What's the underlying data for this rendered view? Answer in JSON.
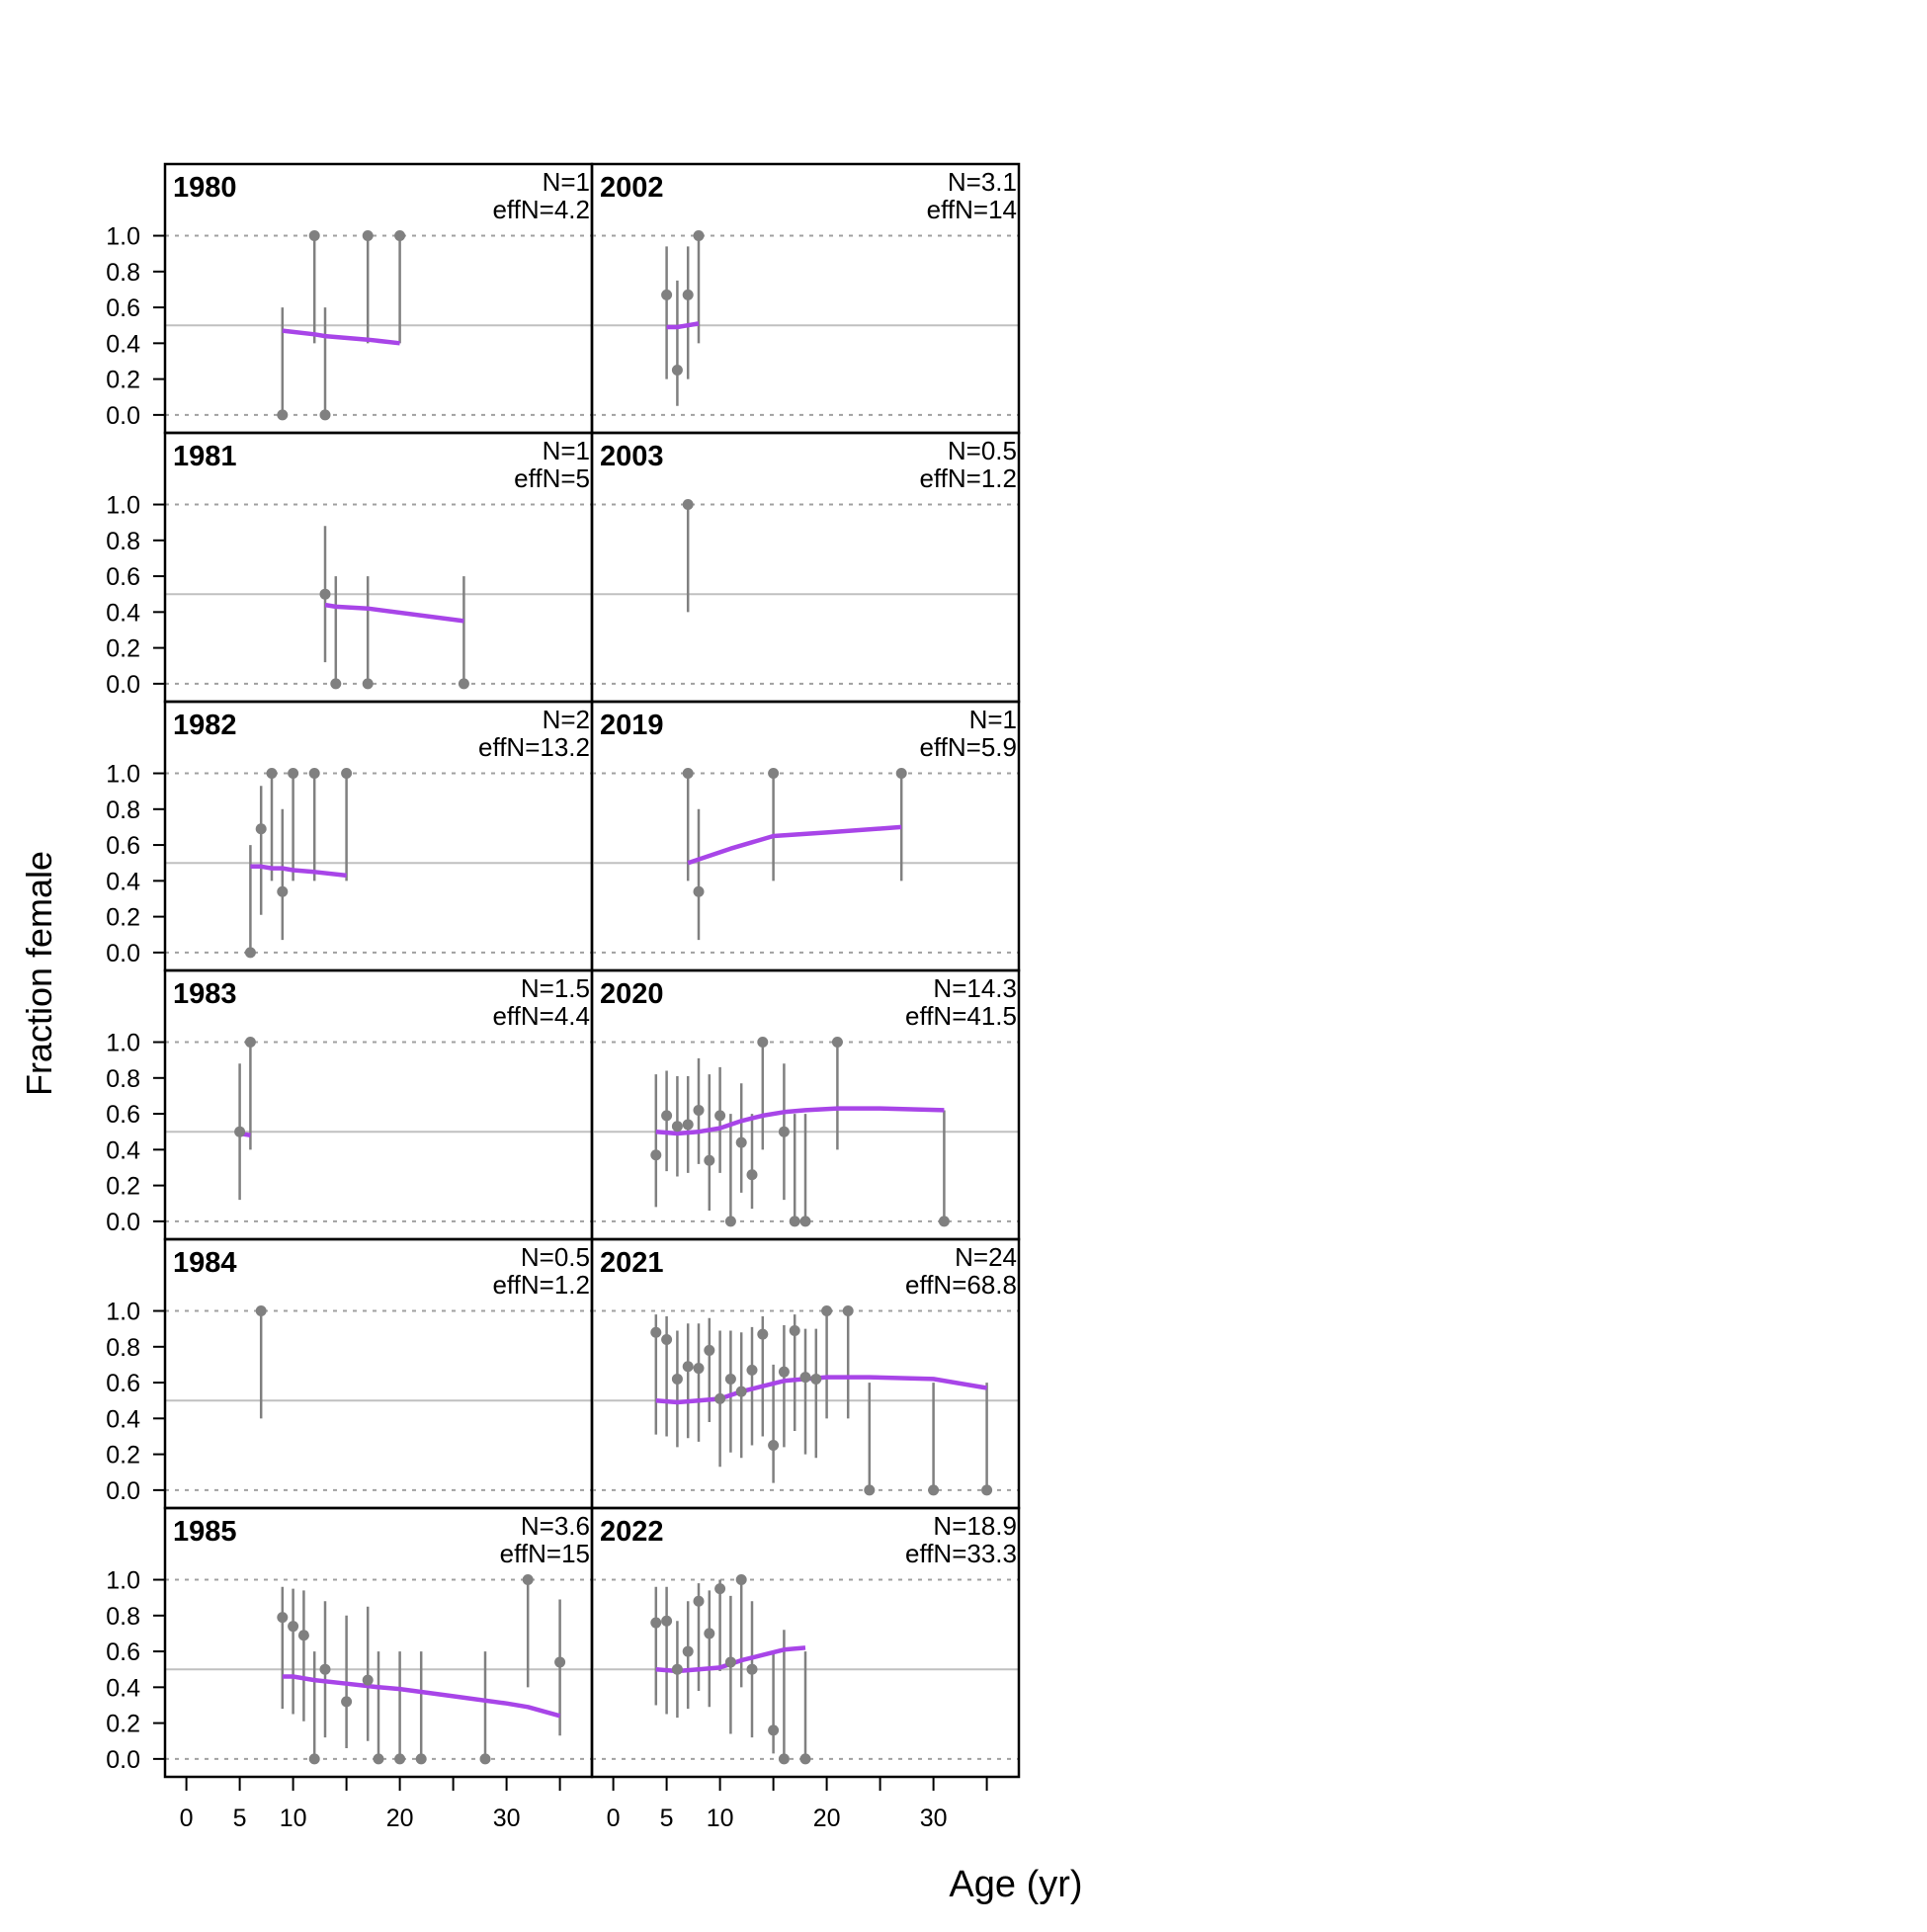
{
  "chart_data": {
    "type": "scatter",
    "ylabel": "Fraction female",
    "xlabel": "Age (yr)",
    "xlim": [
      -2,
      38
    ],
    "ylim": [
      -0.1,
      1.4
    ],
    "x_ticks": [
      0,
      5,
      10,
      15,
      20,
      25,
      30,
      35
    ],
    "x_tick_labels": [
      "0",
      "5",
      "10",
      "20",
      "30"
    ],
    "x_tick_label_values": [
      0,
      5,
      10,
      20,
      30
    ],
    "y_ticks": [
      0.0,
      0.2,
      0.4,
      0.6,
      0.8,
      1.0
    ],
    "y_tick_labels": [
      "0.0",
      "0.2",
      "0.4",
      "0.6",
      "0.8",
      "1.0"
    ],
    "reference_line": 0.5,
    "colors": {
      "observed": "#808080",
      "expected": "#a845e8",
      "reference": "#c0c0c0",
      "grid": "#a0a0a0"
    },
    "panels": [
      {
        "year": "1980",
        "n_label": "N=1",
        "effn_label": "effN=4.2",
        "column": 0,
        "row": 0,
        "observed": [
          [
            9,
            0.0
          ],
          [
            12,
            1.0
          ],
          [
            13,
            0.0
          ],
          [
            17,
            1.0
          ],
          [
            20,
            1.0
          ]
        ],
        "intervals": [
          [
            9,
            0.0,
            0.6
          ],
          [
            12,
            0.4,
            1.0
          ],
          [
            13,
            0.0,
            0.6
          ],
          [
            17,
            0.4,
            1.0
          ],
          [
            20,
            0.4,
            1.0
          ]
        ],
        "expected": [
          [
            9,
            0.47
          ],
          [
            12,
            0.45
          ],
          [
            13,
            0.44
          ],
          [
            17,
            0.42
          ],
          [
            20,
            0.4
          ]
        ]
      },
      {
        "year": "1981",
        "n_label": "N=1",
        "effn_label": "effN=5",
        "column": 0,
        "row": 1,
        "observed": [
          [
            13,
            0.5
          ],
          [
            14,
            0.0
          ],
          [
            17,
            0.0
          ],
          [
            26,
            0.0
          ]
        ],
        "intervals": [
          [
            13,
            0.12,
            0.88
          ],
          [
            14,
            0.0,
            0.6
          ],
          [
            17,
            0.0,
            0.6
          ],
          [
            26,
            0.0,
            0.6
          ]
        ],
        "expected": [
          [
            13,
            0.44
          ],
          [
            14,
            0.43
          ],
          [
            17,
            0.42
          ],
          [
            26,
            0.35
          ]
        ]
      },
      {
        "year": "1982",
        "n_label": "N=2",
        "effn_label": "effN=13.2",
        "column": 0,
        "row": 2,
        "observed": [
          [
            6,
            0.0
          ],
          [
            7,
            0.69
          ],
          [
            8,
            1.0
          ],
          [
            9,
            0.34
          ],
          [
            10,
            1.0
          ],
          [
            12,
            1.0
          ],
          [
            15,
            1.0
          ]
        ],
        "intervals": [
          [
            6,
            0.0,
            0.6
          ],
          [
            7,
            0.21,
            0.93
          ],
          [
            8,
            0.4,
            1.0
          ],
          [
            9,
            0.07,
            0.8
          ],
          [
            10,
            0.4,
            1.0
          ],
          [
            12,
            0.4,
            1.0
          ],
          [
            15,
            0.4,
            1.0
          ]
        ],
        "expected": [
          [
            6,
            0.48
          ],
          [
            7,
            0.48
          ],
          [
            8,
            0.47
          ],
          [
            9,
            0.47
          ],
          [
            10,
            0.46
          ],
          [
            12,
            0.45
          ],
          [
            15,
            0.43
          ]
        ]
      },
      {
        "year": "1983",
        "n_label": "N=1.5",
        "effn_label": "effN=4.4",
        "column": 0,
        "row": 3,
        "observed": [
          [
            5,
            0.5
          ],
          [
            6,
            1.0
          ]
        ],
        "intervals": [
          [
            5,
            0.12,
            0.88
          ],
          [
            6,
            0.4,
            1.0
          ]
        ],
        "expected": [
          [
            5,
            0.49
          ],
          [
            6,
            0.48
          ]
        ]
      },
      {
        "year": "1984",
        "n_label": "N=0.5",
        "effn_label": "effN=1.2",
        "column": 0,
        "row": 4,
        "observed": [
          [
            7,
            1.0
          ]
        ],
        "intervals": [
          [
            7,
            0.4,
            1.0
          ]
        ],
        "expected": []
      },
      {
        "year": "1985",
        "n_label": "N=3.6",
        "effn_label": "effN=15",
        "column": 0,
        "row": 5,
        "observed": [
          [
            9,
            0.79
          ],
          [
            10,
            0.74
          ],
          [
            11,
            0.69
          ],
          [
            12,
            0.0
          ],
          [
            13,
            0.5
          ],
          [
            15,
            0.32
          ],
          [
            17,
            0.44
          ],
          [
            18,
            0.0
          ],
          [
            20,
            0.0
          ],
          [
            22,
            0.0
          ],
          [
            28,
            0.0
          ],
          [
            32,
            1.0
          ],
          [
            35,
            0.54
          ]
        ],
        "intervals": [
          [
            9,
            0.28,
            0.96
          ],
          [
            10,
            0.25,
            0.95
          ],
          [
            11,
            0.21,
            0.94
          ],
          [
            12,
            0.0,
            0.6
          ],
          [
            13,
            0.12,
            0.88
          ],
          [
            15,
            0.06,
            0.8
          ],
          [
            17,
            0.1,
            0.85
          ],
          [
            18,
            0.0,
            0.6
          ],
          [
            20,
            0.0,
            0.6
          ],
          [
            22,
            0.0,
            0.6
          ],
          [
            28,
            0.0,
            0.6
          ],
          [
            32,
            0.4,
            1.0
          ],
          [
            35,
            0.13,
            0.89
          ]
        ],
        "expected": [
          [
            9,
            0.46
          ],
          [
            10,
            0.46
          ],
          [
            12,
            0.44
          ],
          [
            15,
            0.42
          ],
          [
            18,
            0.4
          ],
          [
            20,
            0.39
          ],
          [
            25,
            0.35
          ],
          [
            30,
            0.31
          ],
          [
            32,
            0.29
          ],
          [
            35,
            0.24
          ]
        ]
      },
      {
        "year": "2002",
        "n_label": "N=3.1",
        "effn_label": "effN=14",
        "column": 1,
        "row": 0,
        "observed": [
          [
            5,
            0.67
          ],
          [
            6,
            0.25
          ],
          [
            7,
            0.67
          ],
          [
            8,
            1.0
          ]
        ],
        "intervals": [
          [
            5,
            0.2,
            0.94
          ],
          [
            6,
            0.05,
            0.75
          ],
          [
            7,
            0.2,
            0.94
          ],
          [
            8,
            0.4,
            1.0
          ]
        ],
        "expected": [
          [
            5,
            0.49
          ],
          [
            6,
            0.49
          ],
          [
            7,
            0.5
          ],
          [
            8,
            0.51
          ]
        ]
      },
      {
        "year": "2003",
        "n_label": "N=0.5",
        "effn_label": "effN=1.2",
        "column": 1,
        "row": 1,
        "observed": [
          [
            7,
            1.0
          ]
        ],
        "intervals": [
          [
            7,
            0.4,
            1.0
          ]
        ],
        "expected": []
      },
      {
        "year": "2019",
        "n_label": "N=1",
        "effn_label": "effN=5.9",
        "column": 1,
        "row": 2,
        "observed": [
          [
            7,
            1.0
          ],
          [
            8,
            0.34
          ],
          [
            15,
            1.0
          ],
          [
            27,
            1.0
          ]
        ],
        "intervals": [
          [
            7,
            0.4,
            1.0
          ],
          [
            8,
            0.07,
            0.8
          ],
          [
            15,
            0.4,
            1.0
          ],
          [
            27,
            0.4,
            1.0
          ]
        ],
        "expected": [
          [
            7,
            0.5
          ],
          [
            8,
            0.52
          ],
          [
            11,
            0.58
          ],
          [
            15,
            0.65
          ],
          [
            20,
            0.67
          ],
          [
            27,
            0.7
          ]
        ]
      },
      {
        "year": "2020",
        "n_label": "N=14.3",
        "effn_label": "effN=41.5",
        "column": 1,
        "row": 3,
        "observed": [
          [
            4,
            0.37
          ],
          [
            5,
            0.59
          ],
          [
            6,
            0.53
          ],
          [
            7,
            0.54
          ],
          [
            8,
            0.62
          ],
          [
            9,
            0.34
          ],
          [
            10,
            0.59
          ],
          [
            11,
            0.0
          ],
          [
            12,
            0.44
          ],
          [
            13,
            0.26
          ],
          [
            14,
            1.0
          ],
          [
            16,
            0.5
          ],
          [
            17,
            0.0
          ],
          [
            18,
            0.0
          ],
          [
            21,
            1.0
          ],
          [
            31,
            0.0
          ]
        ],
        "intervals": [
          [
            4,
            0.08,
            0.82
          ],
          [
            5,
            0.28,
            0.84
          ],
          [
            6,
            0.25,
            0.81
          ],
          [
            7,
            0.27,
            0.81
          ],
          [
            8,
            0.32,
            0.91
          ],
          [
            9,
            0.06,
            0.82
          ],
          [
            10,
            0.27,
            0.86
          ],
          [
            11,
            0.0,
            0.6
          ],
          [
            12,
            0.16,
            0.77
          ],
          [
            13,
            0.07,
            0.6
          ],
          [
            14,
            0.4,
            1.0
          ],
          [
            16,
            0.12,
            0.88
          ],
          [
            17,
            0.0,
            0.6
          ],
          [
            18,
            0.0,
            0.6
          ],
          [
            21,
            0.4,
            1.0
          ],
          [
            31,
            0.0,
            0.62
          ]
        ],
        "expected": [
          [
            4,
            0.5
          ],
          [
            6,
            0.49
          ],
          [
            8,
            0.5
          ],
          [
            10,
            0.52
          ],
          [
            12,
            0.56
          ],
          [
            14,
            0.59
          ],
          [
            16,
            0.61
          ],
          [
            18,
            0.62
          ],
          [
            21,
            0.63
          ],
          [
            25,
            0.63
          ],
          [
            31,
            0.62
          ]
        ]
      },
      {
        "year": "2021",
        "n_label": "N=24",
        "effn_label": "effN=68.8",
        "column": 1,
        "row": 4,
        "observed": [
          [
            4,
            0.88
          ],
          [
            5,
            0.84
          ],
          [
            6,
            0.62
          ],
          [
            7,
            0.69
          ],
          [
            8,
            0.68
          ],
          [
            9,
            0.78
          ],
          [
            10,
            0.51
          ],
          [
            11,
            0.62
          ],
          [
            12,
            0.55
          ],
          [
            13,
            0.67
          ],
          [
            14,
            0.87
          ],
          [
            15,
            0.25
          ],
          [
            16,
            0.66
          ],
          [
            17,
            0.89
          ],
          [
            18,
            0.63
          ],
          [
            19,
            0.62
          ],
          [
            20,
            1.0
          ],
          [
            22,
            1.0
          ],
          [
            24,
            0.0
          ],
          [
            30,
            0.0
          ],
          [
            35,
            0.0
          ]
        ],
        "intervals": [
          [
            4,
            0.31,
            0.98
          ],
          [
            5,
            0.3,
            0.97
          ],
          [
            6,
            0.24,
            0.89
          ],
          [
            7,
            0.29,
            0.93
          ],
          [
            8,
            0.27,
            0.93
          ],
          [
            9,
            0.38,
            0.96
          ],
          [
            10,
            0.13,
            0.89
          ],
          [
            11,
            0.21,
            0.89
          ],
          [
            12,
            0.18,
            0.88
          ],
          [
            13,
            0.25,
            0.91
          ],
          [
            14,
            0.3,
            0.97
          ],
          [
            15,
            0.04,
            0.7
          ],
          [
            16,
            0.24,
            0.92
          ],
          [
            17,
            0.33,
            0.98
          ],
          [
            18,
            0.2,
            0.9
          ],
          [
            19,
            0.18,
            0.9
          ],
          [
            20,
            0.4,
            1.0
          ],
          [
            22,
            0.4,
            1.0
          ],
          [
            24,
            0.0,
            0.6
          ],
          [
            30,
            0.0,
            0.6
          ],
          [
            35,
            0.0,
            0.6
          ]
        ],
        "expected": [
          [
            4,
            0.5
          ],
          [
            6,
            0.49
          ],
          [
            8,
            0.5
          ],
          [
            10,
            0.51
          ],
          [
            12,
            0.55
          ],
          [
            14,
            0.58
          ],
          [
            16,
            0.61
          ],
          [
            18,
            0.62
          ],
          [
            20,
            0.63
          ],
          [
            24,
            0.63
          ],
          [
            30,
            0.62
          ],
          [
            35,
            0.57
          ]
        ]
      },
      {
        "year": "2022",
        "n_label": "N=18.9",
        "effn_label": "effN=33.3",
        "column": 1,
        "row": 5,
        "observed": [
          [
            4,
            0.76
          ],
          [
            5,
            0.77
          ],
          [
            6,
            0.5
          ],
          [
            7,
            0.6
          ],
          [
            8,
            0.88
          ],
          [
            9,
            0.7
          ],
          [
            10,
            0.95
          ],
          [
            11,
            0.54
          ],
          [
            12,
            1.0
          ],
          [
            13,
            0.5
          ],
          [
            15,
            0.16
          ],
          [
            16,
            0.0
          ],
          [
            18,
            0.0
          ]
        ],
        "intervals": [
          [
            4,
            0.3,
            0.96
          ],
          [
            5,
            0.25,
            0.96
          ],
          [
            6,
            0.23,
            0.77
          ],
          [
            7,
            0.28,
            0.88
          ],
          [
            8,
            0.38,
            0.98
          ],
          [
            9,
            0.29,
            0.94
          ],
          [
            10,
            0.49,
            1.0
          ],
          [
            11,
            0.14,
            0.91
          ],
          [
            12,
            0.4,
            1.0
          ],
          [
            13,
            0.12,
            0.88
          ],
          [
            15,
            0.03,
            0.6
          ],
          [
            16,
            0.0,
            0.72
          ],
          [
            18,
            0.0,
            0.6
          ]
        ],
        "expected": [
          [
            4,
            0.5
          ],
          [
            6,
            0.49
          ],
          [
            8,
            0.5
          ],
          [
            10,
            0.51
          ],
          [
            12,
            0.55
          ],
          [
            14,
            0.58
          ],
          [
            16,
            0.61
          ],
          [
            18,
            0.62
          ]
        ]
      }
    ]
  }
}
